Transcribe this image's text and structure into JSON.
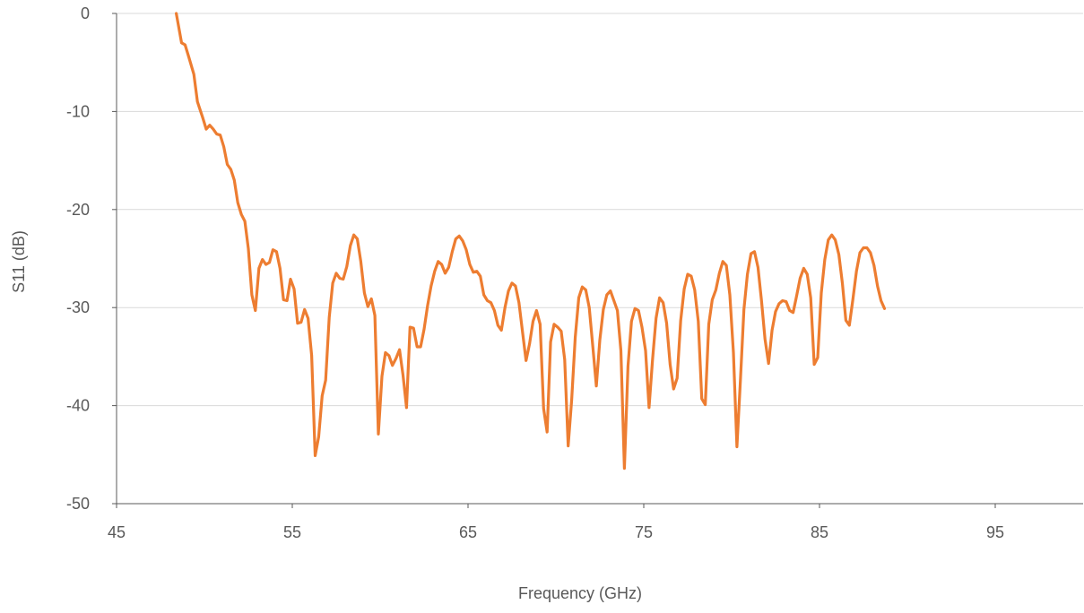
{
  "chart_data": {
    "type": "line",
    "title": "",
    "xlabel": "Frequency (GHz)",
    "ylabel": "S11 (dB)",
    "xlim": [
      45,
      100
    ],
    "ylim": [
      -50,
      0
    ],
    "x_ticks": [
      45,
      55,
      65,
      75,
      85,
      95
    ],
    "x_tick_labels": [
      "45",
      "55",
      "65",
      "75",
      "85",
      "95"
    ],
    "y_ticks": [
      0,
      -10,
      -20,
      -30,
      -40,
      -50
    ],
    "y_tick_labels": [
      "0",
      "-10",
      "-20",
      "-30",
      "-40",
      "-50"
    ],
    "grid": "horizontal",
    "legend": "none",
    "colors": {
      "series": "#ED7D31",
      "grid": "#D9D9D9",
      "axis": "#595959",
      "text": "#595959"
    },
    "series": [
      {
        "color": "#ED7D31",
        "points": [
          [
            48.4,
            0.0
          ],
          [
            48.7,
            -3.0
          ],
          [
            48.9,
            -3.2
          ],
          [
            49.1,
            -4.4
          ],
          [
            49.4,
            -6.2
          ],
          [
            49.6,
            -9.0
          ],
          [
            49.9,
            -10.6
          ],
          [
            50.1,
            -11.8
          ],
          [
            50.3,
            -11.4
          ],
          [
            50.5,
            -11.8
          ],
          [
            50.7,
            -12.3
          ],
          [
            50.9,
            -12.4
          ],
          [
            51.1,
            -13.6
          ],
          [
            51.3,
            -15.4
          ],
          [
            51.5,
            -15.9
          ],
          [
            51.7,
            -17.0
          ],
          [
            51.9,
            -19.3
          ],
          [
            52.1,
            -20.5
          ],
          [
            52.3,
            -21.2
          ],
          [
            52.5,
            -24.0
          ],
          [
            52.7,
            -28.7
          ],
          [
            52.9,
            -30.3
          ],
          [
            53.1,
            -26.0
          ],
          [
            53.3,
            -25.1
          ],
          [
            53.5,
            -25.6
          ],
          [
            53.7,
            -25.4
          ],
          [
            53.9,
            -24.1
          ],
          [
            54.1,
            -24.3
          ],
          [
            54.3,
            -26.0
          ],
          [
            54.5,
            -29.2
          ],
          [
            54.7,
            -29.3
          ],
          [
            54.9,
            -27.1
          ],
          [
            55.1,
            -28.1
          ],
          [
            55.3,
            -31.6
          ],
          [
            55.5,
            -31.5
          ],
          [
            55.7,
            -30.2
          ],
          [
            55.9,
            -31.1
          ],
          [
            56.1,
            -34.9
          ],
          [
            56.3,
            -45.1
          ],
          [
            56.5,
            -43.2
          ],
          [
            56.7,
            -39.0
          ],
          [
            56.9,
            -37.4
          ],
          [
            57.1,
            -31.0
          ],
          [
            57.3,
            -27.5
          ],
          [
            57.5,
            -26.5
          ],
          [
            57.7,
            -27.0
          ],
          [
            57.9,
            -27.1
          ],
          [
            58.1,
            -25.8
          ],
          [
            58.3,
            -23.7
          ],
          [
            58.5,
            -22.6
          ],
          [
            58.7,
            -23.0
          ],
          [
            58.9,
            -25.3
          ],
          [
            59.1,
            -28.5
          ],
          [
            59.3,
            -29.9
          ],
          [
            59.5,
            -29.1
          ],
          [
            59.7,
            -30.8
          ],
          [
            59.9,
            -42.9
          ],
          [
            60.1,
            -37.0
          ],
          [
            60.3,
            -34.6
          ],
          [
            60.5,
            -34.9
          ],
          [
            60.7,
            -35.9
          ],
          [
            60.9,
            -35.2
          ],
          [
            61.1,
            -34.3
          ],
          [
            61.3,
            -36.9
          ],
          [
            61.5,
            -40.2
          ],
          [
            61.7,
            -32.0
          ],
          [
            61.9,
            -32.1
          ],
          [
            62.1,
            -34.0
          ],
          [
            62.3,
            -34.0
          ],
          [
            62.5,
            -32.2
          ],
          [
            62.7,
            -29.8
          ],
          [
            62.9,
            -27.8
          ],
          [
            63.1,
            -26.3
          ],
          [
            63.3,
            -25.3
          ],
          [
            63.5,
            -25.6
          ],
          [
            63.7,
            -26.5
          ],
          [
            63.9,
            -25.9
          ],
          [
            64.1,
            -24.3
          ],
          [
            64.3,
            -23.0
          ],
          [
            64.5,
            -22.7
          ],
          [
            64.7,
            -23.2
          ],
          [
            64.9,
            -24.1
          ],
          [
            65.1,
            -25.6
          ],
          [
            65.3,
            -26.4
          ],
          [
            65.5,
            -26.3
          ],
          [
            65.7,
            -26.8
          ],
          [
            65.9,
            -28.7
          ],
          [
            66.1,
            -29.3
          ],
          [
            66.3,
            -29.5
          ],
          [
            66.5,
            -30.3
          ],
          [
            66.7,
            -31.8
          ],
          [
            66.9,
            -32.3
          ],
          [
            67.1,
            -30.0
          ],
          [
            67.3,
            -28.3
          ],
          [
            67.5,
            -27.5
          ],
          [
            67.7,
            -27.8
          ],
          [
            67.9,
            -29.5
          ],
          [
            68.1,
            -32.5
          ],
          [
            68.3,
            -35.4
          ],
          [
            68.5,
            -33.7
          ],
          [
            68.7,
            -31.4
          ],
          [
            68.9,
            -30.3
          ],
          [
            69.1,
            -31.7
          ],
          [
            69.3,
            -40.3
          ],
          [
            69.5,
            -42.7
          ],
          [
            69.7,
            -33.5
          ],
          [
            69.9,
            -31.7
          ],
          [
            70.1,
            -32.0
          ],
          [
            70.3,
            -32.4
          ],
          [
            70.5,
            -35.3
          ],
          [
            70.7,
            -44.1
          ],
          [
            70.9,
            -39.4
          ],
          [
            71.1,
            -33.0
          ],
          [
            71.3,
            -29.0
          ],
          [
            71.5,
            -27.9
          ],
          [
            71.7,
            -28.2
          ],
          [
            71.9,
            -30.0
          ],
          [
            72.1,
            -34.0
          ],
          [
            72.3,
            -38.0
          ],
          [
            72.5,
            -33.3
          ],
          [
            72.7,
            -30.2
          ],
          [
            72.9,
            -28.7
          ],
          [
            73.1,
            -28.3
          ],
          [
            73.3,
            -29.3
          ],
          [
            73.5,
            -30.3
          ],
          [
            73.7,
            -34.4
          ],
          [
            73.9,
            -46.4
          ],
          [
            74.1,
            -36.0
          ],
          [
            74.3,
            -31.4
          ],
          [
            74.5,
            -30.1
          ],
          [
            74.7,
            -30.3
          ],
          [
            74.9,
            -32.0
          ],
          [
            75.1,
            -34.4
          ],
          [
            75.3,
            -40.2
          ],
          [
            75.5,
            -35.3
          ],
          [
            75.7,
            -31.1
          ],
          [
            75.9,
            -29.0
          ],
          [
            76.1,
            -29.5
          ],
          [
            76.3,
            -31.6
          ],
          [
            76.5,
            -35.8
          ],
          [
            76.7,
            -38.3
          ],
          [
            76.9,
            -37.2
          ],
          [
            77.1,
            -31.3
          ],
          [
            77.3,
            -28.1
          ],
          [
            77.5,
            -26.6
          ],
          [
            77.7,
            -26.8
          ],
          [
            77.9,
            -28.2
          ],
          [
            78.1,
            -31.4
          ],
          [
            78.3,
            -39.3
          ],
          [
            78.5,
            -39.9
          ],
          [
            78.7,
            -31.7
          ],
          [
            78.9,
            -29.2
          ],
          [
            79.1,
            -28.2
          ],
          [
            79.3,
            -26.5
          ],
          [
            79.5,
            -25.3
          ],
          [
            79.7,
            -25.7
          ],
          [
            79.9,
            -28.7
          ],
          [
            80.1,
            -34.6
          ],
          [
            80.3,
            -44.2
          ],
          [
            80.5,
            -37.4
          ],
          [
            80.7,
            -30.2
          ],
          [
            80.9,
            -26.6
          ],
          [
            81.1,
            -24.5
          ],
          [
            81.3,
            -24.3
          ],
          [
            81.5,
            -25.9
          ],
          [
            81.7,
            -29.3
          ],
          [
            81.9,
            -33.2
          ],
          [
            82.1,
            -35.7
          ],
          [
            82.3,
            -32.3
          ],
          [
            82.5,
            -30.4
          ],
          [
            82.7,
            -29.6
          ],
          [
            82.9,
            -29.3
          ],
          [
            83.1,
            -29.4
          ],
          [
            83.3,
            -30.3
          ],
          [
            83.5,
            -30.5
          ],
          [
            83.7,
            -28.8
          ],
          [
            83.9,
            -27.0
          ],
          [
            84.1,
            -26.0
          ],
          [
            84.3,
            -26.6
          ],
          [
            84.5,
            -29.0
          ],
          [
            84.7,
            -35.8
          ],
          [
            84.9,
            -35.1
          ],
          [
            85.1,
            -28.5
          ],
          [
            85.3,
            -25.1
          ],
          [
            85.5,
            -23.1
          ],
          [
            85.7,
            -22.6
          ],
          [
            85.9,
            -23.1
          ],
          [
            86.1,
            -24.6
          ],
          [
            86.3,
            -27.5
          ],
          [
            86.5,
            -31.3
          ],
          [
            86.7,
            -31.8
          ],
          [
            86.9,
            -29.2
          ],
          [
            87.1,
            -26.3
          ],
          [
            87.3,
            -24.4
          ],
          [
            87.5,
            -23.9
          ],
          [
            87.7,
            -23.9
          ],
          [
            87.9,
            -24.4
          ],
          [
            88.1,
            -25.7
          ],
          [
            88.3,
            -27.8
          ],
          [
            88.5,
            -29.3
          ],
          [
            88.7,
            -30.1
          ]
        ]
      }
    ]
  }
}
